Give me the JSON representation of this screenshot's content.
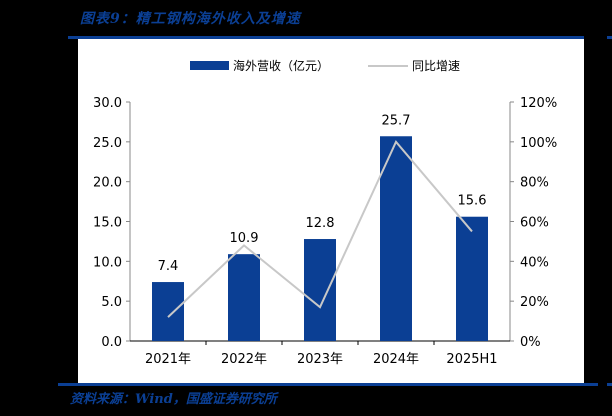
{
  "title": "图表9：精工钢构海外收入及增速",
  "source": "资料来源：Wind，国盛证券研究所",
  "colors": {
    "bar": "#0B3F94",
    "line": "#C8C8C8",
    "accent": "#0B3F94"
  },
  "legend": {
    "bar_label": "海外营收（亿元）",
    "line_label": "同比增速"
  },
  "axes": {
    "left_ticks": [
      "30.0",
      "25.0",
      "20.0",
      "15.0",
      "10.0",
      "5.0",
      "0.0"
    ],
    "right_ticks": [
      "120%",
      "100%",
      "80%",
      "60%",
      "40%",
      "20%",
      "0%"
    ]
  },
  "chart_data": {
    "type": "bar",
    "title": "图表9：精工钢构海外收入及增速",
    "categories": [
      "2021年",
      "2022年",
      "2023年",
      "2024年",
      "2025H1"
    ],
    "series": [
      {
        "name": "海外营收（亿元）",
        "type": "bar",
        "axis": "left",
        "values": [
          7.4,
          10.9,
          12.8,
          25.7,
          15.6
        ],
        "labels": [
          "7.4",
          "10.9",
          "12.8",
          "25.7",
          "15.6"
        ]
      },
      {
        "name": "同比增速",
        "type": "line",
        "axis": "right",
        "values": [
          12,
          48,
          17,
          100,
          55
        ],
        "unit": "%"
      }
    ],
    "ylim_left": [
      0,
      30
    ],
    "ylim_right": [
      0,
      120
    ],
    "legend_position": "top",
    "grid": false
  }
}
